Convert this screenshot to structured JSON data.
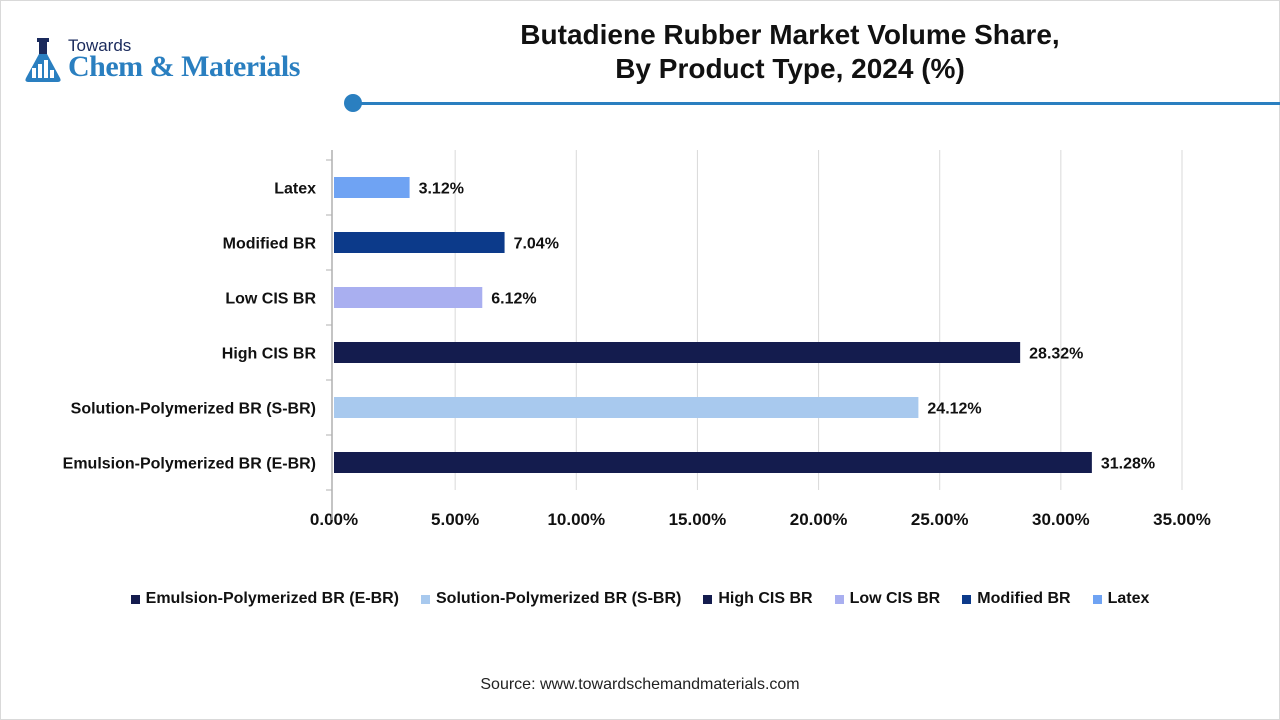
{
  "logo": {
    "towards": "Towards",
    "name": "Chem & Materials"
  },
  "title": {
    "line1": "Butadiene Rubber Market Volume Share,",
    "line2": "By Product Type, 2024 (%)"
  },
  "chart_data": {
    "type": "bar",
    "orientation": "horizontal",
    "title": "Butadiene Rubber Market Volume Share, By Product Type, 2024 (%)",
    "categories": [
      "Latex",
      "Modified BR",
      "Low CIS BR",
      "High CIS BR",
      "Solution-Polymerized BR (S-BR)",
      "Emulsion-Polymerized BR (E-BR)"
    ],
    "values": [
      3.12,
      7.04,
      6.12,
      28.32,
      24.12,
      31.28
    ],
    "value_labels": [
      "3.12%",
      "7.04%",
      "6.12%",
      "28.32%",
      "24.12%",
      "31.28%"
    ],
    "colors": [
      "#6fa3f3",
      "#0c3a8a",
      "#a9aff0",
      "#141c4e",
      "#a8c9ee",
      "#141c4e"
    ],
    "xlim": [
      0,
      35
    ],
    "xticks": [
      0,
      5,
      10,
      15,
      20,
      25,
      30,
      35
    ],
    "xtick_labels": [
      "0.00%",
      "5.00%",
      "10.00%",
      "15.00%",
      "20.00%",
      "25.00%",
      "30.00%",
      "35.00%"
    ],
    "xlabel": "",
    "ylabel": "",
    "grid": true,
    "legend_position": "bottom"
  },
  "legend": [
    {
      "label": "Emulsion-Polymerized BR (E-BR)",
      "color": "#141c4e"
    },
    {
      "label": "Solution-Polymerized BR (S-BR)",
      "color": "#a8c9ee"
    },
    {
      "label": "High CIS BR",
      "color": "#141c4e"
    },
    {
      "label": "Low CIS BR",
      "color": "#a9aff0"
    },
    {
      "label": "Modified BR",
      "color": "#0c3a8a"
    },
    {
      "label": "Latex",
      "color": "#6fa3f3"
    }
  ],
  "source": "Source: www.towardschemandmaterials.com"
}
